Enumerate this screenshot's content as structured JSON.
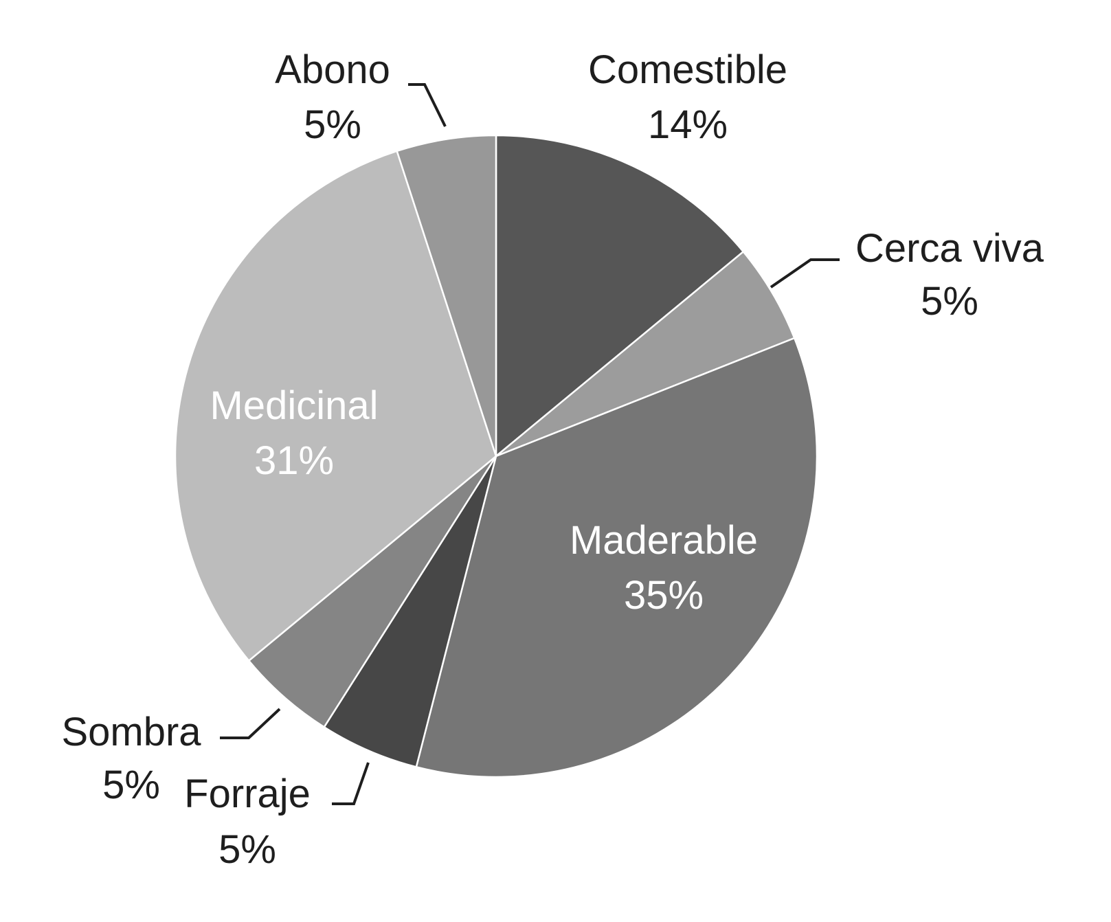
{
  "chart_data": {
    "type": "pie",
    "title": "",
    "slices": [
      {
        "label": "Comestible",
        "value": 14,
        "value_label": "14%",
        "color": "#565656",
        "label_color": "#1e1e1e"
      },
      {
        "label": "Cerca viva",
        "value": 5,
        "value_label": "5%",
        "color": "#9c9c9c",
        "label_color": "#1e1e1e"
      },
      {
        "label": "Maderable",
        "value": 35,
        "value_label": "35%",
        "color": "#767676",
        "label_color": "#ffffff"
      },
      {
        "label": "Forraje",
        "value": 5,
        "value_label": "5%",
        "color": "#474747",
        "label_color": "#1e1e1e"
      },
      {
        "label": "Sombra",
        "value": 5,
        "value_label": "5%",
        "color": "#858585",
        "label_color": "#1e1e1e"
      },
      {
        "label": "Medicinal",
        "value": 31,
        "value_label": "31%",
        "color": "#bcbcbc",
        "label_color": "#ffffff"
      },
      {
        "label": "Abono",
        "value": 5,
        "value_label": "5%",
        "color": "#989898",
        "label_color": "#1e1e1e"
      }
    ],
    "start_angle": "12 o'clock",
    "direction": "clockwise",
    "legend": "none"
  }
}
